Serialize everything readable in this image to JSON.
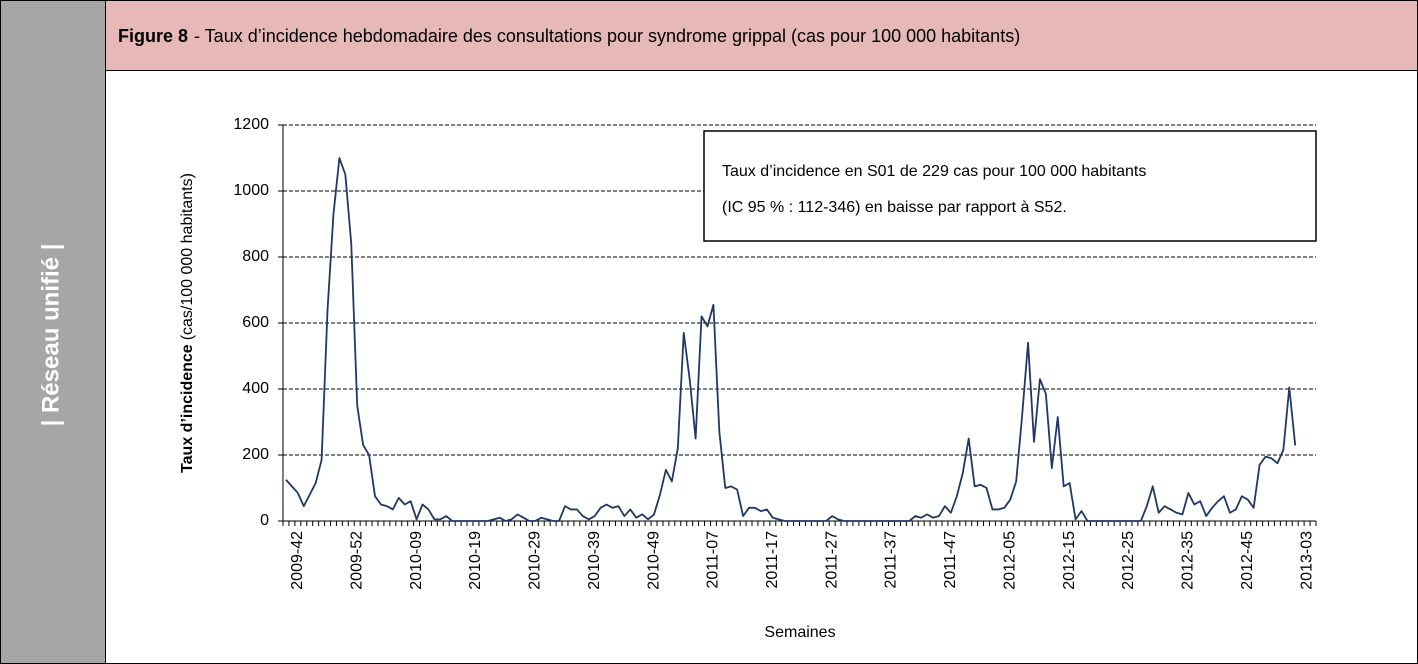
{
  "sidebar": "| Réseau unifié |",
  "header": {
    "label": "Figure 8",
    "title": "- Taux d’incidence hebdomadaire des consultations pour syndrome grippal (cas pour 100 000 habitants)"
  },
  "chart_data": {
    "type": "line",
    "y_label": "Taux d’incidence",
    "y_label_unit": "(cas/100 000 habitants)",
    "x_label": "Semaines",
    "annotation": [
      "Taux d’incidence en S01 de 229 cas pour 100 000 habitants",
      "(IC 95 % : 112-346) en baisse par rapport à S52."
    ],
    "color": "#1f3864",
    "grid": true,
    "ylim": [
      0,
      1200
    ],
    "yticks": [
      0,
      200,
      400,
      600,
      800,
      1000,
      1200
    ],
    "categories": [
      null,
      null,
      "2009-42",
      null,
      null,
      null,
      null,
      null,
      null,
      null,
      null,
      null,
      "2009-52",
      null,
      null,
      null,
      null,
      null,
      null,
      null,
      null,
      null,
      "2010-09",
      null,
      null,
      null,
      null,
      null,
      null,
      null,
      null,
      null,
      "2010-19",
      null,
      null,
      null,
      null,
      null,
      null,
      null,
      null,
      null,
      "2010-29",
      null,
      null,
      null,
      null,
      null,
      null,
      null,
      null,
      null,
      "2010-39",
      null,
      null,
      null,
      null,
      null,
      null,
      null,
      null,
      null,
      "2010-49",
      null,
      null,
      null,
      null,
      null,
      null,
      null,
      null,
      null,
      "2011-07",
      null,
      null,
      null,
      null,
      null,
      null,
      null,
      null,
      null,
      "2011-17",
      null,
      null,
      null,
      null,
      null,
      null,
      null,
      null,
      null,
      "2011-27",
      null,
      null,
      null,
      null,
      null,
      null,
      null,
      null,
      null,
      "2011-37",
      null,
      null,
      null,
      null,
      null,
      null,
      null,
      null,
      null,
      "2011-47",
      null,
      null,
      null,
      null,
      null,
      null,
      null,
      null,
      null,
      "2012-05",
      null,
      null,
      null,
      null,
      null,
      null,
      null,
      null,
      null,
      "2012-15",
      null,
      null,
      null,
      null,
      null,
      null,
      null,
      null,
      null,
      "2012-25",
      null,
      null,
      null,
      null,
      null,
      null,
      null,
      null,
      null,
      "2012-35",
      null,
      null,
      null,
      null,
      null,
      null,
      null,
      null,
      null,
      "2012-45",
      null,
      null,
      null,
      null,
      null,
      null,
      null,
      null,
      null,
      "2013-03",
      null
    ],
    "values": [
      125,
      105,
      85,
      45,
      80,
      115,
      185,
      640,
      930,
      1100,
      1050,
      840,
      350,
      230,
      200,
      75,
      50,
      45,
      35,
      70,
      50,
      60,
      5,
      50,
      35,
      5,
      5,
      15,
      0,
      0,
      0,
      0,
      0,
      0,
      0,
      5,
      10,
      0,
      5,
      20,
      10,
      0,
      0,
      10,
      5,
      0,
      0,
      45,
      35,
      35,
      15,
      5,
      15,
      40,
      50,
      40,
      45,
      15,
      35,
      10,
      20,
      5,
      20,
      80,
      155,
      120,
      220,
      570,
      430,
      250,
      620,
      590,
      655,
      270,
      100,
      105,
      95,
      15,
      40,
      40,
      30,
      35,
      10,
      5,
      0,
      0,
      0,
      0,
      0,
      0,
      0,
      0,
      15,
      5,
      0,
      0,
      0,
      0,
      0,
      0,
      0,
      0,
      0,
      0,
      0,
      0,
      15,
      10,
      20,
      10,
      15,
      45,
      25,
      75,
      145,
      250,
      105,
      110,
      100,
      35,
      35,
      40,
      65,
      120,
      320,
      540,
      240,
      430,
      385,
      160,
      315,
      105,
      115,
      5,
      30,
      0,
      0,
      0,
      0,
      0,
      0,
      0,
      0,
      0,
      0,
      45,
      105,
      25,
      45,
      35,
      25,
      20,
      85,
      50,
      60,
      15,
      40,
      60,
      75,
      25,
      35,
      75,
      65,
      40,
      170,
      195,
      190,
      175,
      215,
      405,
      229,
      null,
      null,
      null
    ]
  }
}
